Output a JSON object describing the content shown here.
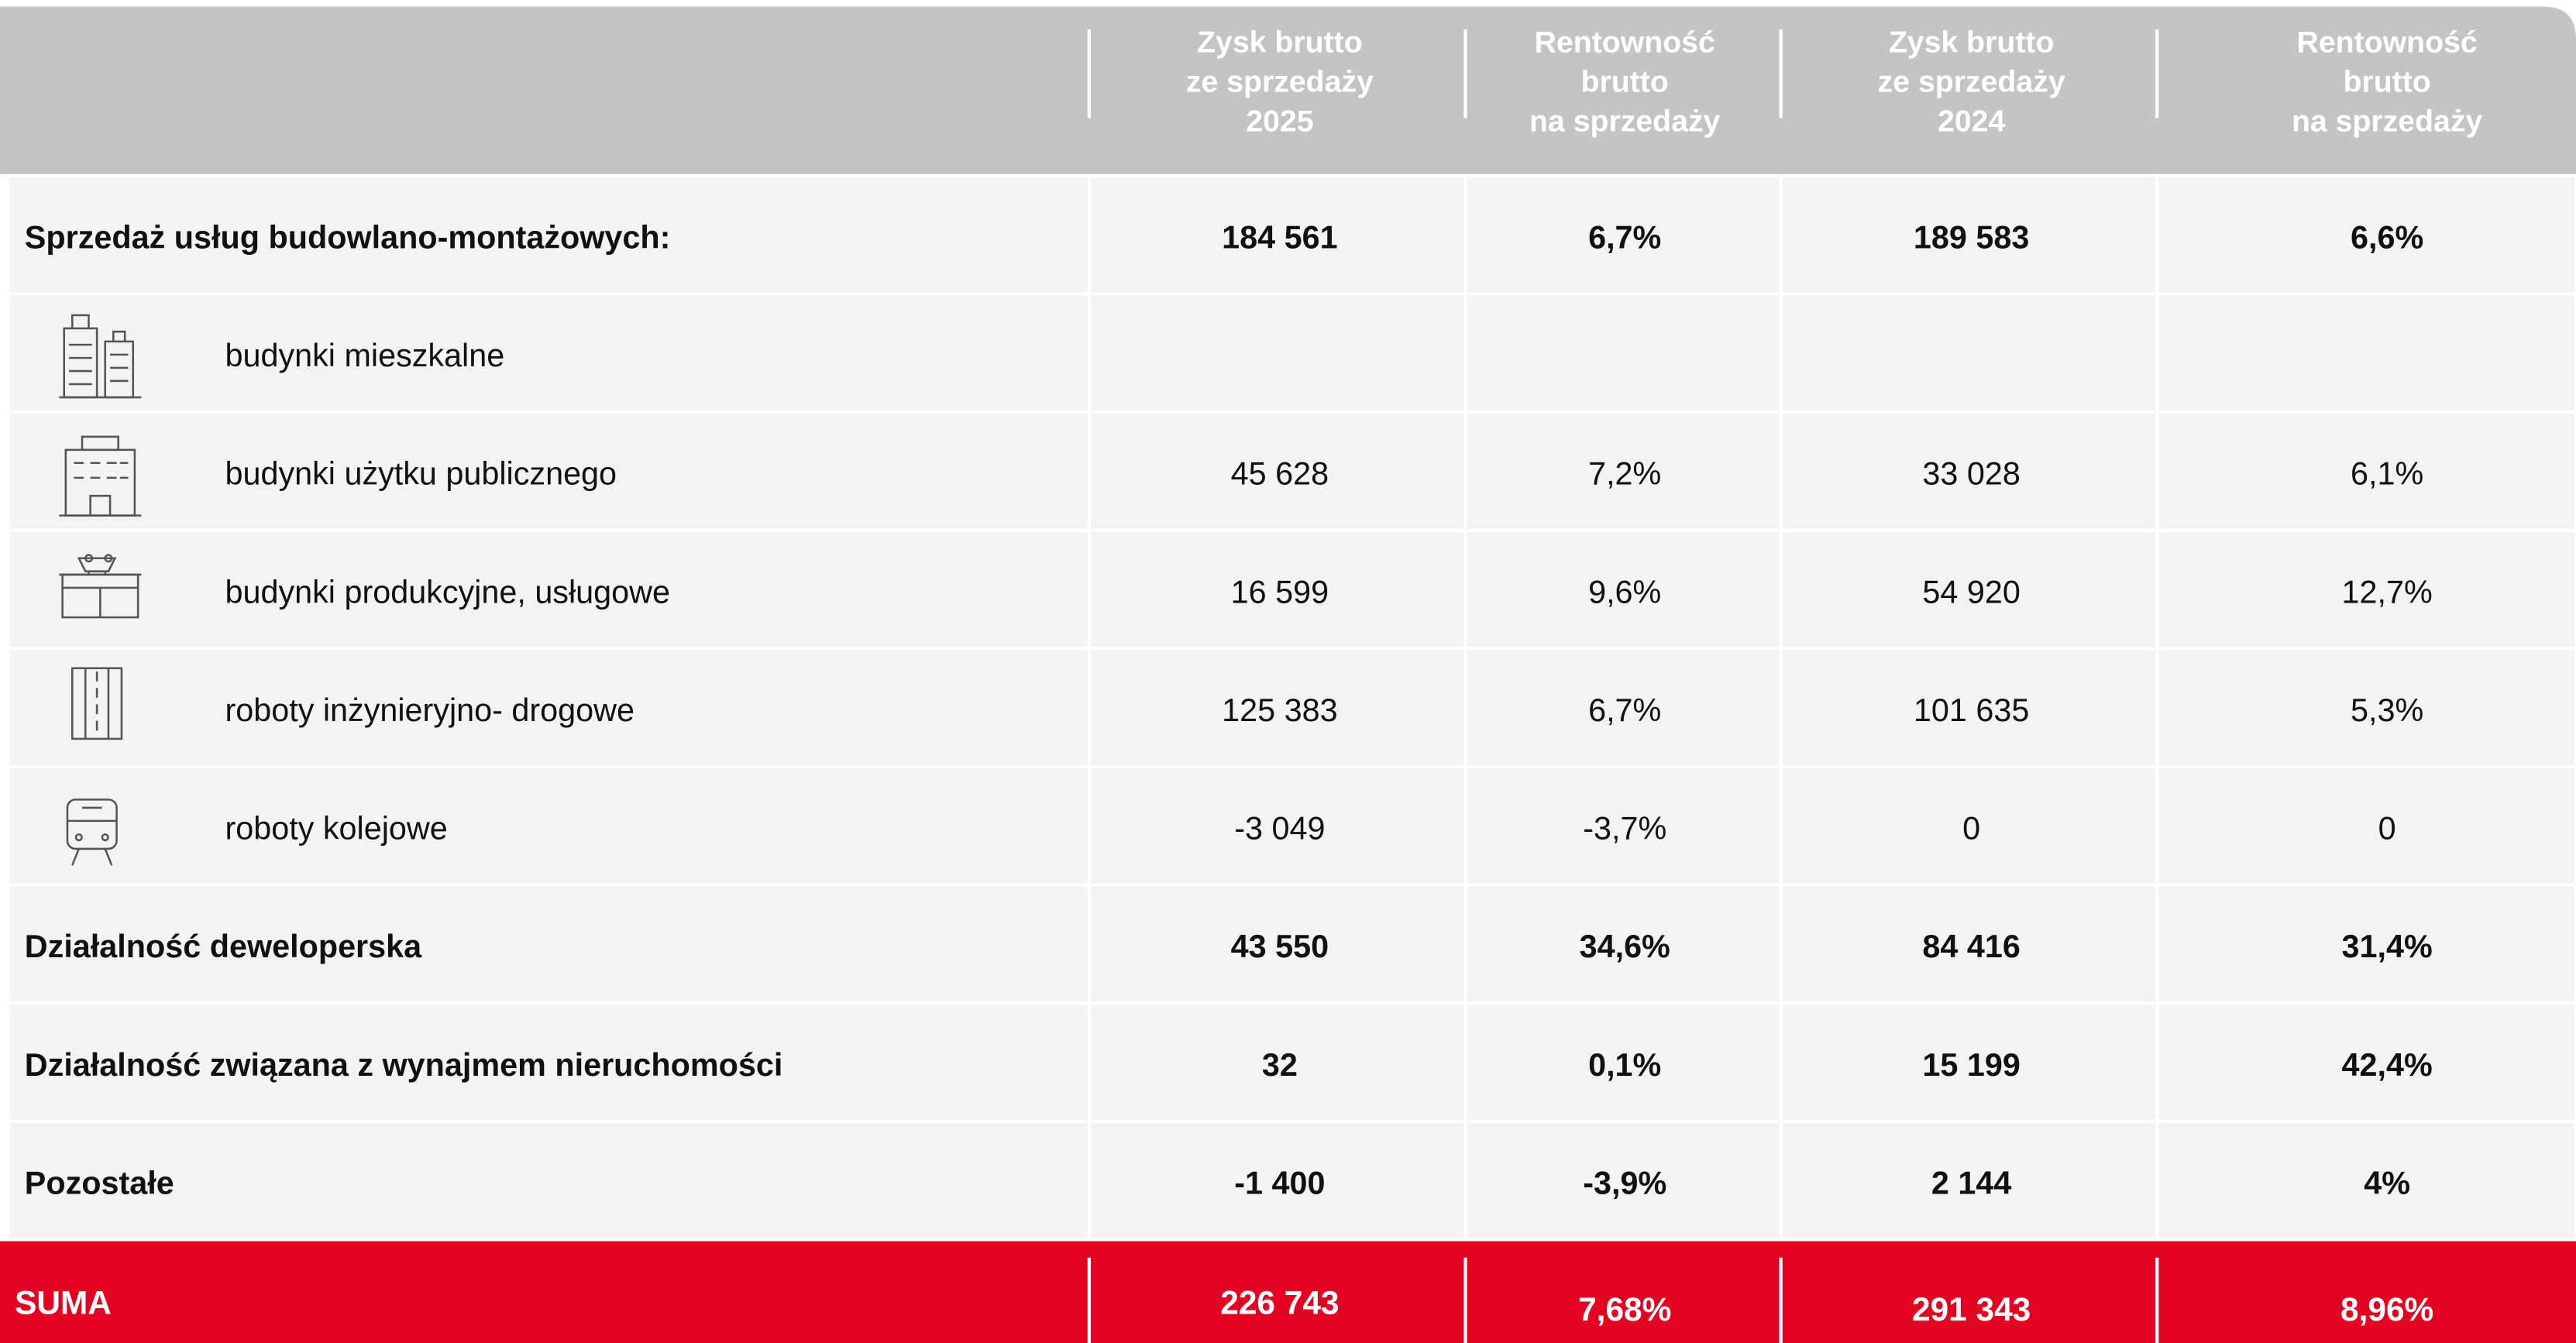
{
  "table": {
    "header": [
      [
        "Zysk brutto",
        "ze sprzedaży",
        "2025"
      ],
      [
        "Rentowność",
        "brutto",
        "na sprzedaży"
      ],
      [
        "Zysk brutto",
        "ze sprzedaży",
        "2024"
      ],
      [
        "Rentowność",
        "brutto",
        "na sprzedaży"
      ]
    ],
    "rows": [
      {
        "label": "Sprzedaż usług budowlano-montażowych:",
        "values": [
          "184 561",
          "6,7%",
          "189 583",
          "6,6%"
        ]
      },
      {
        "label": "budynki mieszkalne",
        "values": [
          null,
          null,
          null,
          null
        ]
      },
      {
        "label": "budynki użytku publicznego",
        "values": [
          "45 628",
          "7,2%",
          "33 028",
          "6,1%"
        ]
      },
      {
        "label": "budynki produkcyjne, usługowe",
        "values": [
          "16 599",
          "9,6%",
          "54 920",
          "12,7%"
        ]
      },
      {
        "label": "roboty inżynieryjno- drogowe",
        "values": [
          "125 383",
          "6,7%",
          "101 635",
          "5,3%"
        ]
      },
      {
        "label": "roboty kolejowe",
        "values": [
          "-3 049",
          "-3,7%",
          "0",
          "0"
        ]
      },
      {
        "label": "Działalność deweloperska",
        "values": [
          "43 550",
          "34,6%",
          "84 416",
          "31,4%"
        ]
      },
      {
        "label": "Działalność związana z wynajmem nieruchomości",
        "values": [
          "32",
          "0,1%",
          "15 199",
          "42,4%"
        ]
      },
      {
        "label": "Pozostałe",
        "values": [
          "-1 400",
          "-3,9%",
          "2 144",
          "4%"
        ]
      }
    ],
    "total": {
      "label": "SUMA",
      "values": [
        "226 743",
        "7,68%",
        "291 343",
        "8,96%"
      ]
    }
  }
}
